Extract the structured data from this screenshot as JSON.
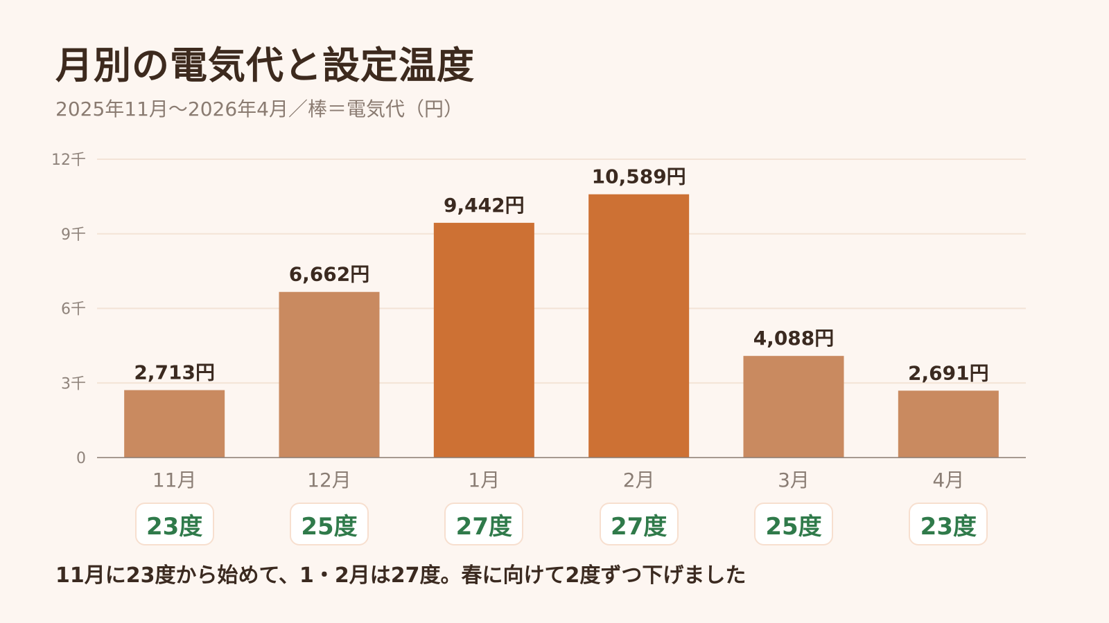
{
  "chart_data": {
    "type": "bar",
    "title": "月別の電気代と設定温度",
    "subtitle": "2025年11月〜2026年4月／棒＝電気代（円）",
    "categories": [
      "11月",
      "12月",
      "1月",
      "2月",
      "3月",
      "4月"
    ],
    "values": [
      2713,
      6662,
      9442,
      10589,
      4088,
      2691
    ],
    "value_labels": [
      "2,713円",
      "6,662円",
      "9,442円",
      "10,589円",
      "4,088円",
      "2,691円"
    ],
    "highlight": [
      false,
      false,
      true,
      true,
      false,
      false
    ],
    "ylim": [
      0,
      12000
    ],
    "yticks": [
      0,
      3000,
      6000,
      9000,
      12000
    ],
    "ytick_labels": [
      "0",
      "3千",
      "6千",
      "9千",
      "12千"
    ],
    "grid": true,
    "temperatures": [
      "23度",
      "25度",
      "27度",
      "27度",
      "25度",
      "23度"
    ],
    "note": "11月に23度から始めて、1・2月は27度。春に向けて2度ずつ下げました"
  },
  "colors": {
    "bar": "#c98a60",
    "bar_highlight": "#cd7134",
    "grid": "#f3e3d6",
    "axis": "#8a7a70",
    "temperature_text": "#2f7a4a"
  }
}
